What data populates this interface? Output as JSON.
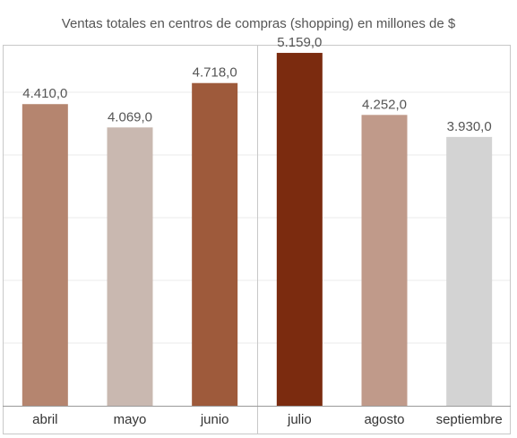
{
  "chart_data": {
    "type": "bar",
    "title": "Ventas totales en centros de compras (shopping) en millones de $",
    "xlabel": "",
    "ylabel": "",
    "categories": [
      "abril",
      "mayo",
      "junio",
      "julio",
      "agosto",
      "septiembre"
    ],
    "values": [
      4410.0,
      4069.0,
      4718.0,
      5159.0,
      4252.0,
      3930.0
    ],
    "value_labels": [
      "4.410,0",
      "4.069,0",
      "4.718,0",
      "5.159,0",
      "4.252,0",
      "3.930,0"
    ],
    "colors": [
      "#b5856f",
      "#c9b8b0",
      "#9e5a3b",
      "#7b2b0f",
      "#c09a8a",
      "#d3d3d3"
    ],
    "ylim": [
      0,
      5500
    ],
    "grid": true,
    "groups": [
      {
        "categories": [
          "abril",
          "mayo",
          "junio"
        ]
      },
      {
        "categories": [
          "julio",
          "agosto",
          "septiembre"
        ]
      }
    ]
  },
  "style": {
    "grid_color": "#ebebeb",
    "frame_color": "#c8c8c8",
    "axis_color": "#9a9a9a"
  }
}
